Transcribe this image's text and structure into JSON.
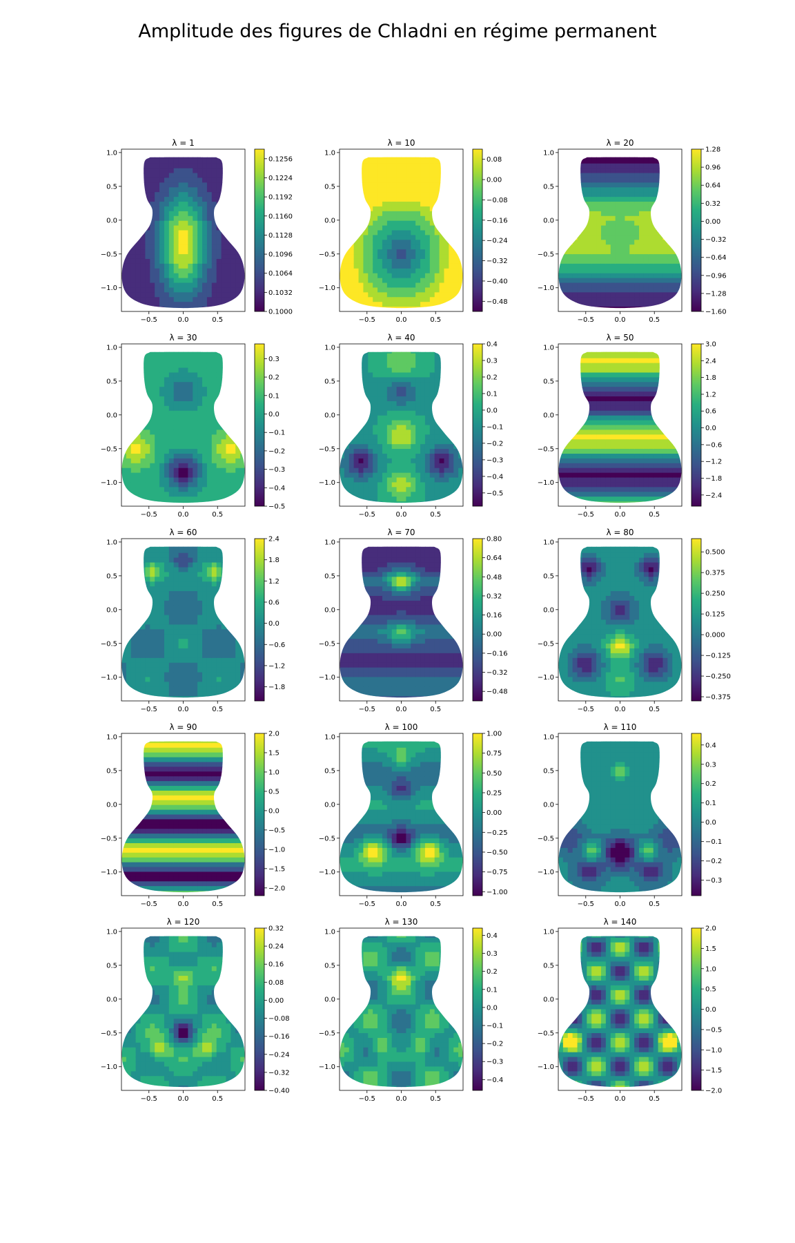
{
  "figure": {
    "title": "Amplitude des figures de Chladni en régime permanent"
  },
  "colormap": [
    "#440154",
    "#472d7b",
    "#3b528b",
    "#2c728e",
    "#21918c",
    "#28ae80",
    "#5ec962",
    "#addc30",
    "#fde725"
  ],
  "chart_data": [
    {
      "type": "heatmap",
      "title": "λ = 1",
      "xlim": [
        -0.9,
        0.9
      ],
      "ylim": [
        -1.35,
        1.05
      ],
      "x_ticks": [
        -0.5,
        0.0,
        0.5
      ],
      "y_ticks": [
        1.0,
        0.5,
        0.0,
        -0.5,
        -1.0
      ],
      "x_tick_labels": [
        "−0.5",
        "0.0",
        "0.5"
      ],
      "y_tick_labels": [
        "1.0",
        "0.5",
        "0.0",
        "−0.5",
        "−1.0"
      ],
      "colorbar": {
        "min": 0.1,
        "max": 0.1272,
        "ticks": [
          0.1256,
          0.1224,
          0.1192,
          0.116,
          0.1128,
          0.1096,
          0.1064,
          0.1032,
          0.1
        ],
        "labels": [
          "0.1256",
          "0.1224",
          "0.1192",
          "0.1160",
          "0.1128",
          "0.1096",
          "0.1064",
          "0.1032",
          "0.1000"
        ]
      }
    },
    {
      "type": "heatmap",
      "title": "λ = 10",
      "xlim": [
        -0.9,
        0.9
      ],
      "ylim": [
        -1.35,
        1.05
      ],
      "x_ticks": [
        -0.5,
        0.0,
        0.5
      ],
      "y_ticks": [
        1.0,
        0.5,
        0.0,
        -0.5,
        -1.0
      ],
      "x_tick_labels": [
        "−0.5",
        "0.0",
        "0.5"
      ],
      "y_tick_labels": [
        "1.0",
        "0.5",
        "0.0",
        "−0.5",
        "−1.0"
      ],
      "colorbar": {
        "min": -0.52,
        "max": 0.12,
        "ticks": [
          0.08,
          0.0,
          -0.08,
          -0.16,
          -0.24,
          -0.32,
          -0.4,
          -0.48
        ],
        "labels": [
          "0.08",
          "0.00",
          "−0.08",
          "−0.16",
          "−0.24",
          "−0.32",
          "−0.40",
          "−0.48"
        ]
      }
    },
    {
      "type": "heatmap",
      "title": "λ = 20",
      "xlim": [
        -0.9,
        0.9
      ],
      "ylim": [
        -1.35,
        1.05
      ],
      "x_ticks": [
        -0.5,
        0.0,
        0.5
      ],
      "y_ticks": [
        1.0,
        0.5,
        0.0,
        -0.5,
        -1.0
      ],
      "x_tick_labels": [
        "−0.5",
        "0.0",
        "0.5"
      ],
      "y_tick_labels": [
        "1.0",
        "0.5",
        "0.0",
        "−0.5",
        "−1.0"
      ],
      "colorbar": {
        "min": -1.6,
        "max": 1.28,
        "ticks": [
          1.28,
          0.96,
          0.64,
          0.32,
          0.0,
          -0.32,
          -0.64,
          -0.96,
          -1.28,
          -1.6
        ],
        "labels": [
          "1.28",
          "0.96",
          "0.64",
          "0.32",
          "0.00",
          "−0.32",
          "−0.64",
          "−0.96",
          "−1.28",
          "−1.60"
        ]
      }
    },
    {
      "type": "heatmap",
      "title": "λ = 30",
      "xlim": [
        -0.9,
        0.9
      ],
      "ylim": [
        -1.35,
        1.05
      ],
      "x_ticks": [
        -0.5,
        0.0,
        0.5
      ],
      "y_ticks": [
        1.0,
        0.5,
        0.0,
        -0.5,
        -1.0
      ],
      "x_tick_labels": [
        "−0.5",
        "0.0",
        "0.5"
      ],
      "y_tick_labels": [
        "1.0",
        "0.5",
        "0.0",
        "−0.5",
        "−1.0"
      ],
      "colorbar": {
        "min": -0.5,
        "max": 0.38,
        "ticks": [
          0.3,
          0.2,
          0.1,
          0.0,
          -0.1,
          -0.2,
          -0.3,
          -0.4,
          -0.5
        ],
        "labels": [
          "0.3",
          "0.2",
          "0.1",
          "0.0",
          "−0.1",
          "−0.2",
          "−0.3",
          "−0.4",
          "−0.5"
        ]
      }
    },
    {
      "type": "heatmap",
      "title": "λ = 40",
      "xlim": [
        -0.9,
        0.9
      ],
      "ylim": [
        -1.35,
        1.05
      ],
      "x_ticks": [
        -0.5,
        0.0,
        0.5
      ],
      "y_ticks": [
        1.0,
        0.5,
        0.0,
        -0.5,
        -1.0
      ],
      "x_tick_labels": [
        "−0.5",
        "0.0",
        "0.5"
      ],
      "y_tick_labels": [
        "1.0",
        "0.5",
        "0.0",
        "−0.5",
        "−1.0"
      ],
      "colorbar": {
        "min": -0.58,
        "max": 0.4,
        "ticks": [
          0.4,
          0.3,
          0.2,
          0.1,
          0.0,
          -0.1,
          -0.2,
          -0.3,
          -0.4,
          -0.5
        ],
        "labels": [
          "0.4",
          "0.3",
          "0.2",
          "0.1",
          "0.0",
          "−0.1",
          "−0.2",
          "−0.3",
          "−0.4",
          "−0.5"
        ]
      }
    },
    {
      "type": "heatmap",
      "title": "λ = 50",
      "xlim": [
        -0.9,
        0.9
      ],
      "ylim": [
        -1.35,
        1.05
      ],
      "x_ticks": [
        -0.5,
        0.0,
        0.5
      ],
      "y_ticks": [
        1.0,
        0.5,
        0.0,
        -0.5,
        -1.0
      ],
      "x_tick_labels": [
        "−0.5",
        "0.0",
        "0.5"
      ],
      "y_tick_labels": [
        "1.0",
        "0.5",
        "0.0",
        "−0.5",
        "−1.0"
      ],
      "colorbar": {
        "min": -2.8,
        "max": 3.0,
        "ticks": [
          3.0,
          2.4,
          1.8,
          1.2,
          0.6,
          0.0,
          -0.6,
          -1.2,
          -1.8,
          -2.4
        ],
        "labels": [
          "3.0",
          "2.4",
          "1.8",
          "1.2",
          "0.6",
          "0.0",
          "−0.6",
          "−1.2",
          "−1.8",
          "−2.4"
        ]
      }
    },
    {
      "type": "heatmap",
      "title": "λ = 60",
      "xlim": [
        -0.9,
        0.9
      ],
      "ylim": [
        -1.35,
        1.05
      ],
      "x_ticks": [
        -0.5,
        0.0,
        0.5
      ],
      "y_ticks": [
        1.0,
        0.5,
        0.0,
        -0.5,
        -1.0
      ],
      "x_tick_labels": [
        "−0.5",
        "0.0",
        "0.5"
      ],
      "y_tick_labels": [
        "1.0",
        "0.5",
        "0.0",
        "−0.5",
        "−1.0"
      ],
      "colorbar": {
        "min": -2.2,
        "max": 2.4,
        "ticks": [
          2.4,
          1.8,
          1.2,
          0.6,
          0.0,
          -0.6,
          -1.2,
          -1.8
        ],
        "labels": [
          "2.4",
          "1.8",
          "1.2",
          "0.6",
          "0.0",
          "−0.6",
          "−1.2",
          "−1.8"
        ]
      }
    },
    {
      "type": "heatmap",
      "title": "λ = 70",
      "xlim": [
        -0.9,
        0.9
      ],
      "ylim": [
        -1.35,
        1.05
      ],
      "x_ticks": [
        -0.5,
        0.0,
        0.5
      ],
      "y_ticks": [
        1.0,
        0.5,
        0.0,
        -0.5,
        -1.0
      ],
      "x_tick_labels": [
        "−0.5",
        "0.0",
        "0.5"
      ],
      "y_tick_labels": [
        "1.0",
        "0.5",
        "0.0",
        "−0.5",
        "−1.0"
      ],
      "colorbar": {
        "min": -0.56,
        "max": 0.8,
        "ticks": [
          0.8,
          0.64,
          0.48,
          0.32,
          0.16,
          0.0,
          -0.16,
          -0.32,
          -0.48
        ],
        "labels": [
          "0.80",
          "0.64",
          "0.48",
          "0.32",
          "0.16",
          "0.00",
          "−0.16",
          "−0.32",
          "−0.48"
        ]
      }
    },
    {
      "type": "heatmap",
      "title": "λ = 80",
      "xlim": [
        -0.9,
        0.9
      ],
      "ylim": [
        -1.35,
        1.05
      ],
      "x_ticks": [
        -0.5,
        0.0,
        0.5
      ],
      "y_ticks": [
        1.0,
        0.5,
        0.0,
        -0.5,
        -1.0
      ],
      "x_tick_labels": [
        "−0.5",
        "0.0",
        "0.5"
      ],
      "y_tick_labels": [
        "1.0",
        "0.5",
        "0.0",
        "−0.5",
        "−1.0"
      ],
      "colorbar": {
        "min": -0.4,
        "max": 0.58,
        "ticks": [
          0.5,
          0.375,
          0.25,
          0.125,
          0.0,
          -0.125,
          -0.25,
          -0.375
        ],
        "labels": [
          "0.500",
          "0.375",
          "0.250",
          "0.125",
          "0.000",
          "−0.125",
          "−0.250",
          "−0.375"
        ]
      }
    },
    {
      "type": "heatmap",
      "title": "λ = 90",
      "xlim": [
        -0.9,
        0.9
      ],
      "ylim": [
        -1.35,
        1.05
      ],
      "x_ticks": [
        -0.5,
        0.0,
        0.5
      ],
      "y_ticks": [
        1.0,
        0.5,
        0.0,
        -0.5,
        -1.0
      ],
      "x_tick_labels": [
        "−0.5",
        "0.0",
        "0.5"
      ],
      "y_tick_labels": [
        "1.0",
        "0.5",
        "0.0",
        "−0.5",
        "−1.0"
      ],
      "colorbar": {
        "min": -2.2,
        "max": 2.0,
        "ticks": [
          2.0,
          1.5,
          1.0,
          0.5,
          0.0,
          -0.5,
          -1.0,
          -1.5,
          -2.0
        ],
        "labels": [
          "2.0",
          "1.5",
          "1.0",
          "0.5",
          "0.0",
          "−0.5",
          "−1.0",
          "−1.5",
          "−2.0"
        ]
      }
    },
    {
      "type": "heatmap",
      "title": "λ = 100",
      "xlim": [
        -0.9,
        0.9
      ],
      "ylim": [
        -1.35,
        1.05
      ],
      "x_ticks": [
        -0.5,
        0.0,
        0.5
      ],
      "y_ticks": [
        1.0,
        0.5,
        0.0,
        -0.5,
        -1.0
      ],
      "x_tick_labels": [
        "−0.5",
        "0.0",
        "0.5"
      ],
      "y_tick_labels": [
        "1.0",
        "0.5",
        "0.0",
        "−0.5",
        "−1.0"
      ],
      "colorbar": {
        "min": -1.05,
        "max": 1.0,
        "ticks": [
          1.0,
          0.75,
          0.5,
          0.25,
          0.0,
          -0.25,
          -0.5,
          -0.75,
          -1.0
        ],
        "labels": [
          "1.00",
          "0.75",
          "0.50",
          "0.25",
          "0.00",
          "−0.25",
          "−0.50",
          "−0.75",
          "−1.00"
        ]
      }
    },
    {
      "type": "heatmap",
      "title": "λ = 110",
      "xlim": [
        -0.9,
        0.9
      ],
      "ylim": [
        -1.35,
        1.05
      ],
      "x_ticks": [
        -0.5,
        0.0,
        0.5
      ],
      "y_ticks": [
        1.0,
        0.5,
        0.0,
        -0.5,
        -1.0
      ],
      "x_tick_labels": [
        "−0.5",
        "0.0",
        "0.5"
      ],
      "y_tick_labels": [
        "1.0",
        "0.5",
        "0.0",
        "−0.5",
        "−1.0"
      ],
      "colorbar": {
        "min": -0.38,
        "max": 0.46,
        "ticks": [
          0.4,
          0.3,
          0.2,
          0.1,
          0.0,
          -0.1,
          -0.2,
          -0.3
        ],
        "labels": [
          "0.4",
          "0.3",
          "0.2",
          "0.1",
          "0.0",
          "−0.1",
          "−0.2",
          "−0.3"
        ]
      }
    },
    {
      "type": "heatmap",
      "title": "λ = 120",
      "xlim": [
        -0.9,
        0.9
      ],
      "ylim": [
        -1.35,
        1.05
      ],
      "x_ticks": [
        -0.5,
        0.0,
        0.5
      ],
      "y_ticks": [
        1.0,
        0.5,
        0.0,
        -0.5,
        -1.0
      ],
      "x_tick_labels": [
        "−0.5",
        "0.0",
        "0.5"
      ],
      "y_tick_labels": [
        "1.0",
        "0.5",
        "0.0",
        "−0.5",
        "−1.0"
      ],
      "colorbar": {
        "min": -0.4,
        "max": 0.32,
        "ticks": [
          0.32,
          0.24,
          0.16,
          0.08,
          0.0,
          -0.08,
          -0.16,
          -0.24,
          -0.32,
          -0.4
        ],
        "labels": [
          "0.32",
          "0.24",
          "0.16",
          "0.08",
          "0.00",
          "−0.08",
          "−0.16",
          "−0.24",
          "−0.32",
          "−0.40"
        ]
      }
    },
    {
      "type": "heatmap",
      "title": "λ = 130",
      "xlim": [
        -0.9,
        0.9
      ],
      "ylim": [
        -1.35,
        1.05
      ],
      "x_ticks": [
        -0.5,
        0.0,
        0.5
      ],
      "y_ticks": [
        1.0,
        0.5,
        0.0,
        -0.5,
        -1.0
      ],
      "x_tick_labels": [
        "−0.5",
        "0.0",
        "0.5"
      ],
      "y_tick_labels": [
        "1.0",
        "0.5",
        "0.0",
        "−0.5",
        "−1.0"
      ],
      "colorbar": {
        "min": -0.46,
        "max": 0.44,
        "ticks": [
          0.4,
          0.3,
          0.2,
          0.1,
          0.0,
          -0.1,
          -0.2,
          -0.3,
          -0.4
        ],
        "labels": [
          "0.4",
          "0.3",
          "0.2",
          "0.1",
          "0.0",
          "−0.1",
          "−0.2",
          "−0.3",
          "−0.4"
        ]
      }
    },
    {
      "type": "heatmap",
      "title": "λ = 140",
      "xlim": [
        -0.9,
        0.9
      ],
      "ylim": [
        -1.35,
        1.05
      ],
      "x_ticks": [
        -0.5,
        0.0,
        0.5
      ],
      "y_ticks": [
        1.0,
        0.5,
        0.0,
        -0.5,
        -1.0
      ],
      "x_tick_labels": [
        "−0.5",
        "0.0",
        "0.5"
      ],
      "y_tick_labels": [
        "1.0",
        "0.5",
        "0.0",
        "−0.5",
        "−1.0"
      ],
      "colorbar": {
        "min": -2.0,
        "max": 2.0,
        "ticks": [
          2.0,
          1.5,
          1.0,
          0.5,
          0.0,
          -0.5,
          -1.0,
          -1.5,
          -2.0
        ],
        "labels": [
          "2.0",
          "1.5",
          "1.0",
          "0.5",
          "0.0",
          "−0.5",
          "−1.0",
          "−1.5",
          "−2.0"
        ]
      }
    }
  ]
}
